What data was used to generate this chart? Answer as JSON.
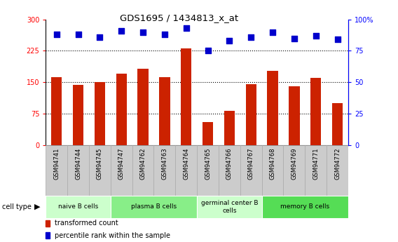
{
  "title": "GDS1695 / 1434813_x_at",
  "samples": [
    "GSM94741",
    "GSM94744",
    "GSM94745",
    "GSM94747",
    "GSM94762",
    "GSM94763",
    "GSM94764",
    "GSM94765",
    "GSM94766",
    "GSM94767",
    "GSM94768",
    "GSM94769",
    "GSM94771",
    "GSM94772"
  ],
  "transformed_count": [
    162,
    143,
    150,
    170,
    183,
    163,
    230,
    55,
    82,
    145,
    177,
    140,
    160,
    100
  ],
  "percentile_rank": [
    88,
    88,
    86,
    91,
    90,
    88,
    93,
    75,
    83,
    86,
    90,
    85,
    87,
    84
  ],
  "ylim_left": [
    0,
    300
  ],
  "ylim_right": [
    0,
    100
  ],
  "yticks_left": [
    0,
    75,
    150,
    225,
    300
  ],
  "yticks_right": [
    0,
    25,
    50,
    75,
    100
  ],
  "ytick_right_labels": [
    "0",
    "25",
    "50",
    "75",
    "100%"
  ],
  "bar_color": "#cc2200",
  "dot_color": "#0000cc",
  "bg_color": "#ffffff",
  "bar_width": 0.5,
  "dot_size": 30,
  "groups": [
    {
      "label": "naive B cells",
      "indices": [
        0,
        1,
        2
      ],
      "color": "#ccffcc"
    },
    {
      "label": "plasma B cells",
      "indices": [
        3,
        4,
        5,
        6
      ],
      "color": "#88ee88"
    },
    {
      "label": "germinal center B\ncells",
      "indices": [
        7,
        8,
        9
      ],
      "color": "#ccffcc"
    },
    {
      "label": "memory B cells",
      "indices": [
        10,
        11,
        12,
        13
      ],
      "color": "#55dd55"
    }
  ],
  "xtick_bg": "#cccccc",
  "legend_items": [
    {
      "label": "transformed count",
      "color": "#cc2200"
    },
    {
      "label": "percentile rank within the sample",
      "color": "#0000cc"
    }
  ]
}
